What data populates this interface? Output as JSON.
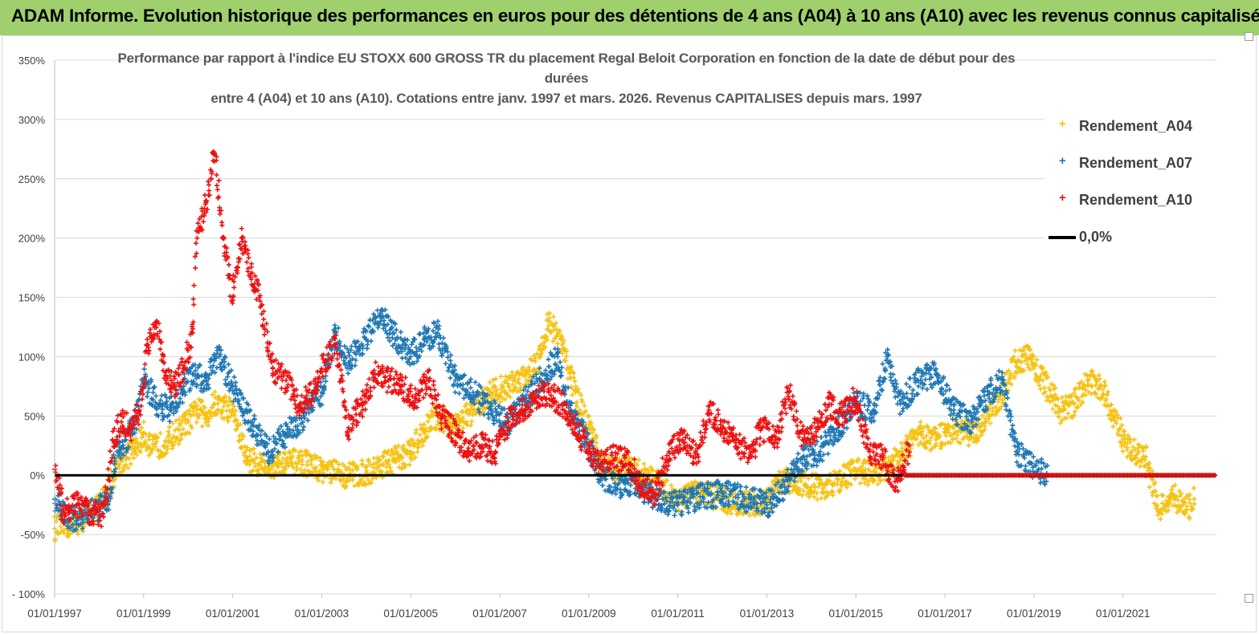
{
  "header": {
    "title": "ADAM Informe. Evolution historique des performances en euros pour des détentions de 4 ans (A04) à 10 ans (A10) avec les revenus connus capitalisés"
  },
  "colors": {
    "header_bg": "#9fd06d",
    "A04": "#f5c211",
    "A07": "#1f77b4",
    "A10": "#ee1111",
    "zero": "#000000"
  },
  "chart_data": {
    "type": "scatter",
    "title_line1": "Performance par rapport à l'indice EU STOXX 600 GROSS TR  du placement Regal Beloit Corporation en fonction de la date de début pour des durées",
    "title_line2": "entre 4 (A04) et 10 ans (A10). Cotations entre janv. 1997 et mars. 2026. Revenus CAPITALISES depuis mars. 1997",
    "x_range": [
      1997.0,
      2023.1
    ],
    "ylim": [
      -100,
      350
    ],
    "y_ticks": [
      350,
      300,
      250,
      200,
      150,
      100,
      50,
      0,
      -50,
      -100
    ],
    "y_tick_labels": [
      "350%",
      "300%",
      "250%",
      "200%",
      "150%",
      "100%",
      "50%",
      "0%",
      "-50%",
      "- 100%"
    ],
    "x_ticks": [
      1997,
      1999,
      2001,
      2003,
      2005,
      2007,
      2009,
      2011,
      2013,
      2015,
      2017,
      2019,
      2021
    ],
    "x_tick_labels": [
      "01/01/1997",
      "01/01/1999",
      "01/01/2001",
      "01/01/2003",
      "01/01/2005",
      "01/01/2007",
      "01/01/2009",
      "01/01/2011",
      "01/01/2013",
      "01/01/2015",
      "01/01/2017",
      "01/01/2019",
      "01/01/2021"
    ],
    "legend": [
      "Rendement_A04",
      "Rendement_A07",
      "Rendement_A10",
      "0,0%"
    ],
    "series": [
      {
        "name": "Rendement_A04",
        "color": "#f5c211",
        "x": [
          1997.0,
          1997.3,
          1997.6,
          1997.9,
          1998.2,
          1998.4,
          1998.6,
          1998.8,
          1999.0,
          1999.2,
          1999.5,
          1999.8,
          2000.0,
          2000.2,
          2000.4,
          2000.6,
          2000.8,
          2001.0,
          2001.3,
          2001.6,
          2002.0,
          2002.5,
          2003.0,
          2003.5,
          2004.0,
          2004.3,
          2004.6,
          2005.0,
          2005.3,
          2005.6,
          2006.0,
          2006.4,
          2006.8,
          2007.2,
          2007.6,
          2007.9,
          2008.1,
          2008.4,
          2008.7,
          2009.0,
          2009.3,
          2009.6,
          2010.0,
          2010.5,
          2011.0,
          2011.5,
          2012.0,
          2012.5,
          2013.0,
          2013.3,
          2013.7,
          2014.0,
          2014.5,
          2015.0,
          2015.5,
          2016.0,
          2016.4,
          2016.8,
          2017.2,
          2017.6,
          2018.0,
          2018.3,
          2018.6,
          2018.9,
          2019.2,
          2019.6,
          2019.9,
          2020.2,
          2020.5,
          2020.8,
          2021.0,
          2021.2,
          2021.5,
          2021.8,
          2022.1,
          2022.4,
          2022.6
        ],
        "values": [
          -45,
          -42,
          -38,
          -30,
          -15,
          10,
          15,
          22,
          35,
          22,
          28,
          38,
          45,
          55,
          50,
          60,
          58,
          55,
          15,
          10,
          8,
          12,
          5,
          0,
          2,
          8,
          12,
          20,
          38,
          50,
          40,
          55,
          70,
          75,
          85,
          100,
          130,
          110,
          70,
          40,
          10,
          5,
          5,
          -5,
          -20,
          -15,
          -20,
          -25,
          -22,
          -5,
          -5,
          -10,
          -8,
          5,
          0,
          15,
          35,
          30,
          40,
          35,
          50,
          70,
          95,
          100,
          80,
          55,
          60,
          80,
          75,
          50,
          30,
          20,
          15,
          -30,
          -15,
          -30,
          -20
        ]
      },
      {
        "name": "Rendement_A07",
        "color": "#1f77b4",
        "x": [
          1997.0,
          1997.3,
          1997.6,
          1997.9,
          1998.2,
          1998.4,
          1998.6,
          1998.8,
          1999.0,
          1999.3,
          1999.6,
          1999.9,
          2000.1,
          2000.4,
          2000.7,
          2001.0,
          2001.4,
          2001.8,
          2002.2,
          2002.6,
          2003.0,
          2003.3,
          2003.6,
          2004.0,
          2004.3,
          2004.6,
          2005.0,
          2005.3,
          2005.6,
          2006.0,
          2006.4,
          2006.8,
          2007.2,
          2007.6,
          2008.0,
          2008.3,
          2008.6,
          2009.0,
          2009.3,
          2009.6,
          2010.0,
          2010.5,
          2011.0,
          2011.5,
          2012.0,
          2012.5,
          2013.0,
          2013.4,
          2013.8,
          2014.2,
          2014.6,
          2015.0,
          2015.4,
          2015.7,
          2016.0,
          2016.4,
          2016.8,
          2017.2,
          2017.6,
          2018.0,
          2018.3,
          2018.6,
          2018.9,
          2019.1,
          2019.3
        ],
        "values": [
          -20,
          -38,
          -35,
          -30,
          -22,
          20,
          30,
          45,
          80,
          60,
          55,
          75,
          85,
          80,
          100,
          75,
          45,
          20,
          35,
          50,
          70,
          120,
          95,
          115,
          135,
          120,
          100,
          115,
          120,
          80,
          70,
          55,
          45,
          65,
          85,
          100,
          55,
          25,
          0,
          -10,
          -5,
          -20,
          -25,
          -18,
          -15,
          -20,
          -25,
          -10,
          15,
          20,
          40,
          60,
          55,
          100,
          60,
          80,
          85,
          55,
          45,
          70,
          80,
          20,
          10,
          5,
          0
        ]
      },
      {
        "name": "Rendement_A10",
        "color": "#ee1111",
        "x": [
          1997.0,
          1997.2,
          1997.5,
          1997.8,
          1998.1,
          1998.3,
          1998.5,
          1998.7,
          1998.9,
          1999.1,
          1999.3,
          1999.5,
          1999.7,
          1999.9,
          2000.1,
          2000.2,
          2000.4,
          2000.6,
          2000.8,
          2001.0,
          2001.2,
          2001.4,
          2001.6,
          2001.9,
          2002.2,
          2002.5,
          2002.8,
          2003.0,
          2003.3,
          2003.6,
          2003.9,
          2004.2,
          2004.5,
          2004.8,
          2005.1,
          2005.4,
          2005.7,
          2006.0,
          2006.3,
          2006.6,
          2006.9,
          2007.2,
          2007.5,
          2007.8,
          2008.1,
          2008.4,
          2008.7,
          2009.0,
          2009.3,
          2009.6,
          2009.9,
          2010.2,
          2010.5,
          2010.8,
          2011.1,
          2011.4,
          2011.7,
          2012.0,
          2012.3,
          2012.6,
          2012.9,
          2013.2,
          2013.5,
          2013.8,
          2014.1,
          2014.4,
          2014.7,
          2015.0,
          2015.3,
          2015.6,
          2015.9,
          2016.2
        ],
        "values": [
          5,
          -30,
          -25,
          -30,
          -35,
          30,
          45,
          40,
          55,
          110,
          130,
          80,
          75,
          90,
          120,
          200,
          230,
          270,
          200,
          150,
          200,
          170,
          150,
          90,
          80,
          60,
          70,
          90,
          110,
          40,
          60,
          85,
          80,
          75,
          65,
          80,
          50,
          35,
          20,
          25,
          20,
          45,
          55,
          65,
          70,
          60,
          40,
          20,
          10,
          15,
          10,
          -10,
          -15,
          20,
          30,
          15,
          55,
          40,
          30,
          15,
          40,
          30,
          70,
          30,
          40,
          60,
          50,
          65,
          20,
          15,
          -10,
          25
        ]
      }
    ],
    "a10_flat_series": {
      "name": "Rendement_A10",
      "from": 2016.1,
      "to": 2023.1,
      "value": 0
    },
    "zero_line": {
      "name": "0,0%",
      "value": 0
    }
  }
}
